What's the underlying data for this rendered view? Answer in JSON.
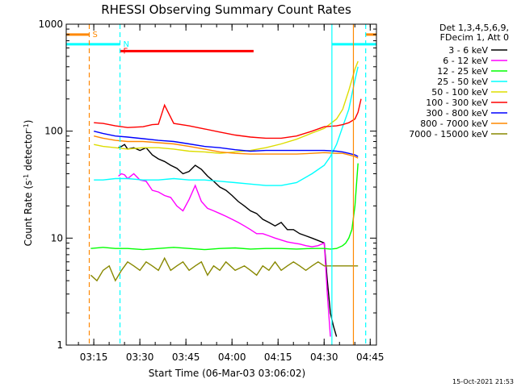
{
  "chart_data": {
    "type": "line",
    "title": "RHESSI Observing Summary Count Rates",
    "xlabel": "Start Time (06-Mar-03 03:06:02)",
    "ylabel_parts": [
      "Count Rate (s",
      "-1",
      " detector",
      "-1",
      ")"
    ],
    "yscale": "log",
    "ylim": [
      1,
      1000
    ],
    "xlim_minutes": [
      0,
      101
    ],
    "x_ticks": [
      {
        "label": "03:15",
        "min": 8.97
      },
      {
        "label": "03:30",
        "min": 23.97
      },
      {
        "label": "03:45",
        "min": 38.97
      },
      {
        "label": "04:00",
        "min": 53.97
      },
      {
        "label": "04:15",
        "min": 68.97
      },
      {
        "label": "04:30",
        "min": 83.97
      },
      {
        "label": "04:45",
        "min": 98.97
      }
    ],
    "y_ticks": [
      {
        "label": "1",
        "value": 1
      },
      {
        "label": "10",
        "value": 10
      },
      {
        "label": "100",
        "value": 100
      },
      {
        "label": "1000",
        "value": 1000
      }
    ],
    "legend_header": [
      "Det 1,3,4,5,6,9,",
      "FDecim 1, Att 0"
    ],
    "series": [
      {
        "name": "3 - 6 keV",
        "color": "#000000",
        "x": [
          17,
          18,
          19,
          20,
          22,
          24,
          26,
          28,
          30,
          32,
          34,
          36,
          38,
          40,
          42,
          44,
          46,
          48,
          50,
          52,
          54,
          56,
          58,
          60,
          62,
          64,
          66,
          68,
          70,
          72,
          74,
          76,
          78,
          80,
          82,
          84,
          85,
          86,
          87,
          88
        ],
        "y": [
          70,
          72,
          75,
          68,
          70,
          66,
          70,
          60,
          55,
          52,
          48,
          45,
          40,
          42,
          48,
          44,
          38,
          34,
          30,
          28,
          25,
          22,
          20,
          18,
          17,
          15,
          14,
          13,
          14,
          12,
          12,
          11,
          10.5,
          10,
          9.5,
          9,
          4,
          2,
          1.5,
          1.2
        ]
      },
      {
        "name": "6 - 12 keV",
        "color": "#ff00ff",
        "x": [
          17,
          18,
          19,
          20,
          22,
          24,
          26,
          28,
          30,
          32,
          34,
          36,
          38,
          40,
          42,
          44,
          46,
          48,
          50,
          52,
          54,
          56,
          58,
          60,
          62,
          64,
          66,
          68,
          70,
          72,
          74,
          76,
          78,
          80,
          82,
          84,
          85,
          86
        ],
        "y": [
          38,
          40,
          39,
          36,
          40,
          35,
          34,
          28,
          27,
          25,
          24,
          20,
          18,
          23,
          31,
          22,
          19,
          18,
          17,
          16,
          15,
          14,
          13,
          12,
          11,
          11,
          10.5,
          10,
          9.6,
          9.2,
          9,
          8.8,
          8.5,
          8.3,
          8.5,
          9,
          3,
          1.2
        ]
      },
      {
        "name": "12 - 25 keV",
        "color": "#00ff00",
        "x": [
          8,
          12,
          16,
          20,
          25,
          30,
          35,
          40,
          45,
          50,
          55,
          60,
          65,
          70,
          75,
          80,
          84,
          86,
          88,
          90,
          91,
          92,
          93,
          94,
          95
        ],
        "y": [
          8,
          8.2,
          8,
          8,
          7.8,
          8,
          8.2,
          8,
          7.8,
          8,
          8.1,
          7.9,
          8,
          8,
          7.9,
          8,
          8,
          7.9,
          8,
          8.5,
          9,
          10,
          12,
          20,
          50
        ]
      },
      {
        "name": "25 - 50 keV",
        "color": "#00ffff",
        "x": [
          9,
          12,
          16,
          20,
          25,
          30,
          35,
          40,
          45,
          50,
          55,
          60,
          65,
          70,
          75,
          80,
          84,
          86,
          88,
          90,
          92,
          93,
          94,
          95
        ],
        "y": [
          35,
          35,
          36,
          36,
          35,
          35,
          36,
          35,
          35,
          34,
          33,
          32,
          31,
          31,
          33,
          40,
          48,
          58,
          75,
          110,
          160,
          220,
          300,
          400
        ]
      },
      {
        "name": "50 - 100 keV",
        "color": "#dddd00",
        "x": [
          9,
          12,
          16,
          20,
          25,
          30,
          35,
          40,
          45,
          50,
          55,
          60,
          65,
          70,
          75,
          80,
          84,
          88,
          90,
          92,
          94,
          95
        ],
        "y": [
          75,
          72,
          70,
          68,
          70,
          70,
          68,
          65,
          64,
          62,
          64,
          66,
          70,
          76,
          84,
          96,
          106,
          130,
          160,
          240,
          380,
          450
        ]
      },
      {
        "name": "100 - 300 keV",
        "color": "#ff0000",
        "x": [
          9,
          12,
          16,
          20,
          25,
          28,
          30,
          32,
          35,
          40,
          45,
          50,
          55,
          60,
          65,
          70,
          75,
          80,
          84,
          88,
          90,
          92,
          94,
          95,
          96
        ],
        "y": [
          120,
          118,
          112,
          108,
          110,
          115,
          116,
          175,
          118,
          112,
          105,
          98,
          92,
          88,
          86,
          86,
          90,
          100,
          110,
          112,
          115,
          120,
          130,
          150,
          200
        ]
      },
      {
        "name": "300 - 800 keV",
        "color": "#0000ff",
        "x": [
          9,
          12,
          16,
          20,
          25,
          30,
          35,
          40,
          45,
          50,
          55,
          60,
          65,
          70,
          75,
          80,
          84,
          88,
          90,
          92,
          94,
          95
        ],
        "y": [
          100,
          95,
          90,
          88,
          85,
          82,
          80,
          76,
          72,
          70,
          67,
          65,
          66,
          66,
          66,
          66,
          66,
          65,
          64,
          62,
          60,
          58
        ]
      },
      {
        "name": "800 - 7000 keV",
        "color": "#ff8800",
        "x": [
          9,
          12,
          16,
          20,
          25,
          30,
          35,
          40,
          45,
          50,
          55,
          60,
          65,
          70,
          75,
          80,
          84,
          88,
          90,
          92,
          94,
          95
        ],
        "y": [
          90,
          86,
          82,
          80,
          80,
          78,
          76,
          72,
          68,
          64,
          62,
          61,
          61,
          61,
          61,
          62,
          63,
          62,
          62,
          60,
          58,
          56
        ]
      },
      {
        "name": "7000 - 15000 keV",
        "color": "#888800",
        "x": [
          8,
          10,
          12,
          14,
          16,
          18,
          20,
          22,
          24,
          26,
          28,
          30,
          32,
          34,
          36,
          38,
          40,
          42,
          44,
          46,
          48,
          50,
          52,
          55,
          58,
          60,
          62,
          64,
          66,
          68,
          70,
          72,
          74,
          76,
          78,
          80,
          82,
          84,
          86,
          88,
          90,
          92,
          94,
          95
        ],
        "y": [
          4.5,
          4,
          5,
          5.5,
          4,
          5,
          6,
          5.5,
          5,
          6,
          5.5,
          5,
          6.5,
          5,
          5.5,
          6,
          5,
          5.5,
          6,
          4.5,
          5.5,
          5,
          6,
          5,
          5.5,
          5,
          4.5,
          5.5,
          5,
          6,
          5,
          5.5,
          6,
          5.5,
          5,
          5.5,
          6,
          5.5,
          5.5,
          5.5,
          5.5,
          5.5,
          5.5,
          5.5
        ]
      }
    ],
    "state_bars": [
      {
        "label": "S",
        "color": "#ff8800",
        "x1": 0,
        "x2": 7.5,
        "y": 800,
        "marker_min": 7.5,
        "dashed_from": 7.5
      },
      {
        "label": "N",
        "color": "#00ffff",
        "x1": 0,
        "x2": 17.5,
        "y": 650,
        "marker_min": 17.5,
        "dashed_from": 17.5
      },
      {
        "label": "F",
        "color": "#ff0000",
        "x1": 17.5,
        "x2": 61,
        "y": 560,
        "marker_min": 17.5
      },
      {
        "label": "",
        "color": "#00ffff",
        "x1": 86.5,
        "x2": 101,
        "y": 650,
        "marker_min": 86.5
      },
      {
        "label": "",
        "color": "#ff8800",
        "x1": 97.5,
        "x2": 101,
        "y": 800,
        "marker_min": 97.5
      }
    ],
    "vertical_lines": [
      {
        "min": 7.5,
        "color": "#ff8800",
        "dashed": true
      },
      {
        "min": 17.5,
        "color": "#00ffff",
        "dashed": true
      },
      {
        "min": 86.5,
        "color": "#00ffff",
        "dashed": false
      },
      {
        "min": 93.5,
        "color": "#ff8800",
        "dashed": false
      },
      {
        "min": 97.5,
        "color": "#00ffff",
        "dashed": true
      }
    ]
  },
  "timestamp": "15-Oct-2021 21:53"
}
